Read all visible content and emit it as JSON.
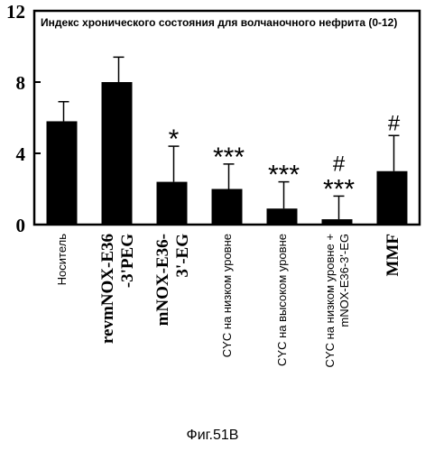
{
  "figure_caption": "Фиг.51В",
  "chart_data": {
    "type": "bar",
    "title": "Индекс хронического состояния для волчаночного нефрита (0-12)",
    "ylim": [
      0,
      12
    ],
    "yticks": [
      0,
      4,
      8,
      12
    ],
    "grid": false,
    "colors": {
      "bar": "#000000",
      "background": "#ffffff"
    },
    "categories": [
      "Носитель",
      "revmNOX-E36 -3'PEG",
      "mNOX-E36- 3'-EG",
      "CYC на низком уровне",
      "CYC на высоком уровне",
      "CYC на низком уровне + mNOX-E36-3'-EG",
      "MMF"
    ],
    "category_lines": [
      [
        "Носитель"
      ],
      [
        "revmNOX-E36",
        "-3'PEG"
      ],
      [
        "mNOX-E36-",
        "3'-EG"
      ],
      [
        "CYC на низком уровне"
      ],
      [
        "CYC на высоком уровне"
      ],
      [
        "CYC на низком уровне +",
        "mNOX-E36-3'-EG"
      ],
      [
        "MMF"
      ]
    ],
    "category_styles": [
      "sans",
      "serif-bold",
      "serif-bold",
      "sans",
      "sans",
      "sans",
      "serif-bold"
    ],
    "values": [
      5.8,
      8.0,
      2.4,
      2.0,
      0.9,
      0.3,
      3.0
    ],
    "errors": [
      1.1,
      1.4,
      2.0,
      1.4,
      1.5,
      1.3,
      2.0
    ],
    "annotations": [
      {
        "bar": 2,
        "lines": [
          "*"
        ]
      },
      {
        "bar": 3,
        "lines": [
          "***"
        ]
      },
      {
        "bar": 4,
        "lines": [
          "***"
        ]
      },
      {
        "bar": 5,
        "lines": [
          "#",
          "***"
        ]
      },
      {
        "bar": 6,
        "lines": [
          "#"
        ]
      }
    ]
  }
}
